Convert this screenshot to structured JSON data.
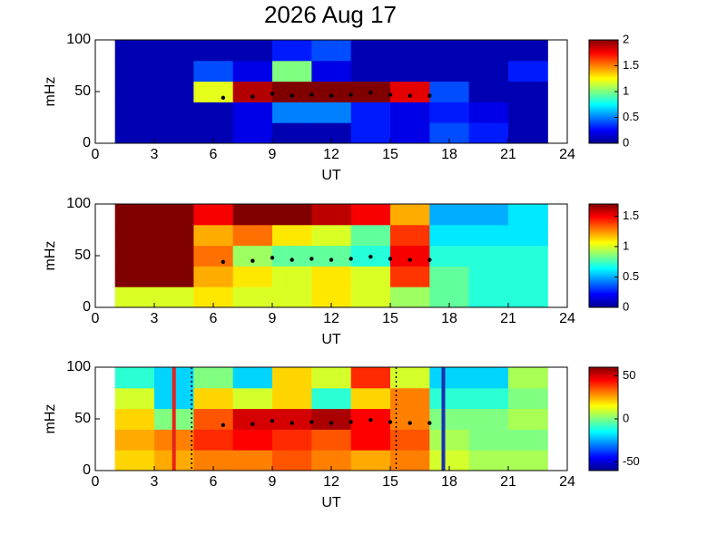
{
  "chart_data": [
    {
      "type": "heatmap",
      "title": "2026 Aug 17",
      "xlabel": "UT",
      "ylabel": "mHz",
      "xlim": [
        0,
        24
      ],
      "xticks": [
        0,
        3,
        6,
        9,
        12,
        15,
        18,
        21,
        24
      ],
      "ylim": [
        0,
        100
      ],
      "yticks": [
        0,
        50,
        100
      ],
      "x_edges": [
        1,
        3,
        5,
        7,
        9,
        11,
        13,
        15,
        17,
        19,
        21,
        23
      ],
      "y_edges": [
        0,
        20,
        40,
        60,
        80,
        100
      ],
      "z": [
        [
          0.1,
          0.1,
          0.1,
          0.2,
          0.1,
          0.1,
          0.3,
          0.2,
          0.4,
          0.3,
          0.1
        ],
        [
          0.1,
          0.1,
          0.1,
          0.2,
          0.5,
          0.5,
          0.3,
          0.2,
          0.3,
          0.2,
          0.1
        ],
        [
          0.1,
          0.1,
          1.2,
          1.9,
          2,
          2,
          2,
          1.8,
          0.4,
          0.1,
          0.1
        ],
        [
          0.1,
          0.1,
          0.4,
          0.2,
          1.0,
          0.2,
          0.1,
          0.1,
          0.1,
          0.1,
          0.3
        ],
        [
          0.1,
          0.1,
          0.1,
          0.1,
          0.3,
          0.4,
          0.1,
          0.1,
          0.1,
          0.1,
          0.1
        ]
      ],
      "clim": [
        0,
        2
      ],
      "cticks": [
        0,
        0.5,
        1,
        1.5,
        2
      ],
      "trace": {
        "color": "#000000",
        "x": [
          6.5,
          8,
          9,
          10,
          11,
          12,
          13,
          14,
          15,
          16,
          17
        ],
        "y": [
          44,
          45,
          48,
          46,
          47,
          46,
          47,
          49,
          47,
          46,
          46
        ]
      },
      "vlines": []
    },
    {
      "type": "heatmap",
      "xlabel": "UT",
      "ylabel": "mHz",
      "xlim": [
        0,
        24
      ],
      "xticks": [
        0,
        3,
        6,
        9,
        12,
        15,
        18,
        21,
        24
      ],
      "ylim": [
        0,
        100
      ],
      "yticks": [
        0,
        50,
        100
      ],
      "x_edges": [
        1,
        3,
        5,
        7,
        9,
        11,
        13,
        15,
        17,
        19,
        21,
        23
      ],
      "y_edges": [
        0,
        20,
        40,
        60,
        80,
        100
      ],
      "z": [
        [
          1.0,
          1.0,
          1.1,
          1.0,
          1.0,
          1.1,
          1.0,
          0.9,
          0.8,
          0.7,
          0.7
        ],
        [
          1.7,
          1.7,
          1.2,
          1.1,
          1.0,
          1.1,
          1.0,
          1.4,
          0.8,
          0.7,
          0.7
        ],
        [
          1.7,
          1.7,
          1.3,
          0.9,
          0.8,
          0.8,
          0.7,
          1.5,
          0.7,
          0.7,
          0.7
        ],
        [
          1.7,
          1.7,
          1.2,
          1.3,
          1.1,
          1.0,
          0.8,
          1.4,
          0.6,
          0.6,
          0.6
        ],
        [
          1.7,
          1.7,
          1.5,
          1.7,
          1.7,
          1.6,
          1.5,
          1.2,
          0.5,
          0.5,
          0.6
        ]
      ],
      "clim": [
        0,
        1.7
      ],
      "cticks": [
        0,
        0.5,
        1,
        1.5
      ],
      "trace": {
        "color": "#000000",
        "x": [
          6.5,
          8,
          9,
          10,
          11,
          12,
          13,
          14,
          15,
          16,
          17
        ],
        "y": [
          44,
          45,
          48,
          46,
          47,
          46,
          47,
          49,
          47,
          46,
          46
        ]
      },
      "vlines": []
    },
    {
      "type": "heatmap",
      "xlabel": "UT",
      "ylabel": "mHz",
      "xlim": [
        0,
        24
      ],
      "xticks": [
        0,
        3,
        6,
        9,
        12,
        15,
        18,
        21,
        24
      ],
      "ylim": [
        0,
        100
      ],
      "yticks": [
        0,
        50,
        100
      ],
      "x_edges": [
        1,
        3,
        5,
        7,
        9,
        11,
        13,
        15,
        17,
        19,
        21,
        23
      ],
      "y_edges": [
        0,
        20,
        40,
        60,
        80,
        100
      ],
      "z": [
        [
          20,
          25,
          30,
          30,
          35,
          30,
          25,
          30,
          10,
          5,
          5
        ],
        [
          25,
          30,
          40,
          45,
          40,
          35,
          45,
          35,
          5,
          0,
          0
        ],
        [
          20,
          0,
          35,
          50,
          50,
          55,
          45,
          30,
          0,
          0,
          5
        ],
        [
          10,
          -20,
          20,
          10,
          20,
          -10,
          20,
          30,
          -10,
          -10,
          0
        ],
        [
          -10,
          -20,
          0,
          -20,
          20,
          10,
          40,
          10,
          -20,
          -20,
          5
        ]
      ],
      "clim": [
        -60,
        60
      ],
      "cticks": [
        -50,
        0,
        50
      ],
      "trace": {
        "color": "#000000",
        "x": [
          6.5,
          8,
          9,
          10,
          11,
          12,
          13,
          14,
          15,
          16,
          17
        ],
        "y": [
          44,
          45,
          48,
          46,
          47,
          46,
          47,
          49,
          47,
          46,
          46
        ]
      },
      "vlines": [
        {
          "x": 4,
          "color": "#e8221a",
          "style": "solid"
        },
        {
          "x": 4.9,
          "color": "#000000",
          "style": "dotted"
        },
        {
          "x": 15.3,
          "color": "#000000",
          "style": "dotted"
        },
        {
          "x": 17.7,
          "color": "#1c2fb0",
          "style": "solid"
        }
      ]
    }
  ]
}
